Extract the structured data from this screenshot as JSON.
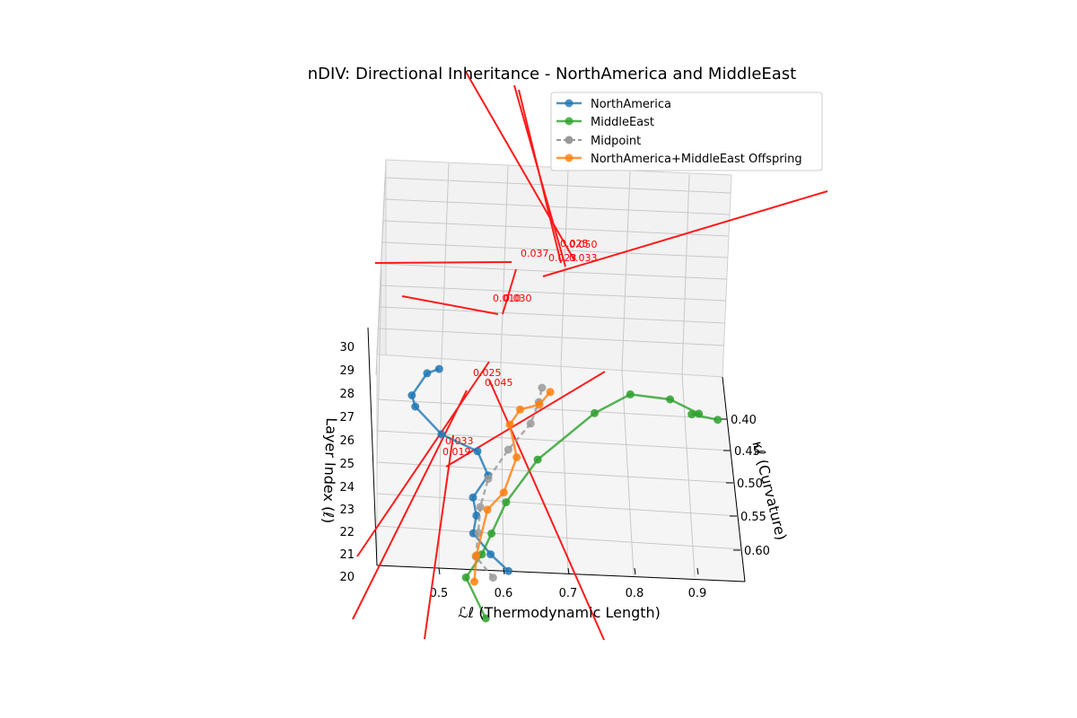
{
  "chart_data": {
    "type": "line",
    "projection": "3d",
    "title": "nDIV: Directional Inheritance - NorthAmerica and MiddleEast",
    "xlabel": "ℒℓ (Thermodynamic Length)",
    "ylabel": "κℓ (Curvature)",
    "zlabel": "Layer Index (ℓ)",
    "x_ticks": [
      "0.5",
      "0.6",
      "0.7",
      "0.8",
      "0.9"
    ],
    "y_ticks": [
      "0.40",
      "0.45",
      "0.50",
      "0.55",
      "0.60"
    ],
    "z_ticks": [
      "20",
      "21",
      "22",
      "23",
      "24",
      "25",
      "26",
      "27",
      "28",
      "29",
      "30"
    ],
    "xlim": [
      0.45,
      0.95
    ],
    "ylim": [
      0.38,
      0.62
    ],
    "zlim": [
      20,
      30
    ],
    "grid": true,
    "legend_position": "upper-right",
    "legend": [
      "NorthAmerica",
      "MiddleEast",
      "Midpoint",
      "NorthAmerica+MiddleEast Offspring"
    ],
    "series": [
      {
        "name": "NorthAmerica",
        "color": "#1f77b4",
        "style": "solid",
        "x": [
          0.56,
          0.54,
          0.52,
          0.53,
          0.53,
          0.56,
          0.55,
          0.5,
          0.47,
          0.47,
          0.5,
          0.52
        ],
        "y": [
          0.5,
          0.51,
          0.5,
          0.49,
          0.48,
          0.47,
          0.45,
          0.44,
          0.44,
          0.45,
          0.44,
          0.44
        ],
        "z": [
          20.8,
          21.6,
          22.3,
          22.9,
          23.5,
          24.3,
          25.0,
          25.5,
          26.6,
          27.2,
          28.0,
          28.2
        ]
      },
      {
        "name": "MiddleEast",
        "color": "#2ca02c",
        "style": "solid",
        "x": [
          0.52,
          0.5,
          0.53,
          0.55,
          0.58,
          0.64,
          0.74,
          0.8,
          0.86,
          0.9,
          0.89,
          0.93
        ],
        "y": [
          0.6,
          0.56,
          0.54,
          0.52,
          0.49,
          0.46,
          0.43,
          0.42,
          0.43,
          0.44,
          0.45,
          0.47
        ],
        "z": [
          20.2,
          21.3,
          22.0,
          22.6,
          23.5,
          24.9,
          26.5,
          27.2,
          27.2,
          26.8,
          26.9,
          27.0
        ]
      },
      {
        "name": "Midpoint",
        "color": "#999999",
        "style": "dashed",
        "x": [
          0.54,
          0.52,
          0.53,
          0.54,
          0.56,
          0.6,
          0.64,
          0.66,
          0.67
        ],
        "y": [
          0.55,
          0.54,
          0.52,
          0.5,
          0.48,
          0.47,
          0.44,
          0.44,
          0.44
        ],
        "z": [
          21.2,
          21.9,
          22.6,
          23.4,
          24.3,
          25.4,
          26.1,
          27.0,
          27.6
        ]
      },
      {
        "name": "NorthAmerica+MiddleEast Offspring",
        "color": "#ff7f0e",
        "style": "solid",
        "x": [
          0.51,
          0.52,
          0.55,
          0.58,
          0.61,
          0.61,
          0.63,
          0.66,
          0.68
        ],
        "y": [
          0.55,
          0.53,
          0.5,
          0.49,
          0.47,
          0.46,
          0.45,
          0.44,
          0.43
        ],
        "z": [
          21.0,
          21.8,
          23.3,
          23.9,
          25.1,
          26.3,
          26.8,
          26.9,
          27.3
        ]
      }
    ],
    "annotations": [
      "0.019",
      "0.033",
      "0.045",
      "0.025",
      "0.030",
      "0.010",
      "0.037",
      "0.033",
      "0.023",
      "0.025",
      "0.050"
    ]
  }
}
